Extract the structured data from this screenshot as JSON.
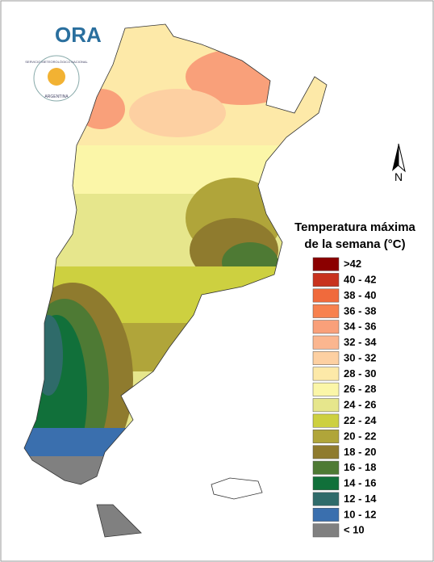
{
  "logo": {
    "name": "ORA",
    "agency": "SERVICIO METEOROLÓGICO NACIONAL",
    "country": "ARGENTINA"
  },
  "north_label": "N",
  "legend": {
    "title_lines": [
      "Temperatura máxima",
      "de la semana (°C)"
    ],
    "items": [
      {
        "label": ">42",
        "color": "#8b0000"
      },
      {
        "label": "40 - 42",
        "color": "#c8321e"
      },
      {
        "label": "38 - 40",
        "color": "#f06a3c"
      },
      {
        "label": "36 - 38",
        "color": "#f7814e"
      },
      {
        "label": "34 - 36",
        "color": "#f9a07a"
      },
      {
        "label": "32 - 34",
        "color": "#fbb68f"
      },
      {
        "label": "30 - 32",
        "color": "#fdd0a2"
      },
      {
        "label": "28 - 30",
        "color": "#fde9a8"
      },
      {
        "label": "26 - 28",
        "color": "#fbf6a8"
      },
      {
        "label": "24 - 26",
        "color": "#e6e68c"
      },
      {
        "label": "22 - 24",
        "color": "#cdd040"
      },
      {
        "label": "20 - 22",
        "color": "#b0a53a"
      },
      {
        "label": "18 - 20",
        "color": "#8f7b2e"
      },
      {
        "label": "16 - 18",
        "color": "#4e7a34"
      },
      {
        "label": "14 - 16",
        "color": "#11703a"
      },
      {
        "label": "12 - 14",
        "color": "#2f6b6a"
      },
      {
        "label": "10 - 12",
        "color": "#3a6fae"
      },
      {
        "label": "< 10",
        "color": "#808080"
      }
    ]
  }
}
